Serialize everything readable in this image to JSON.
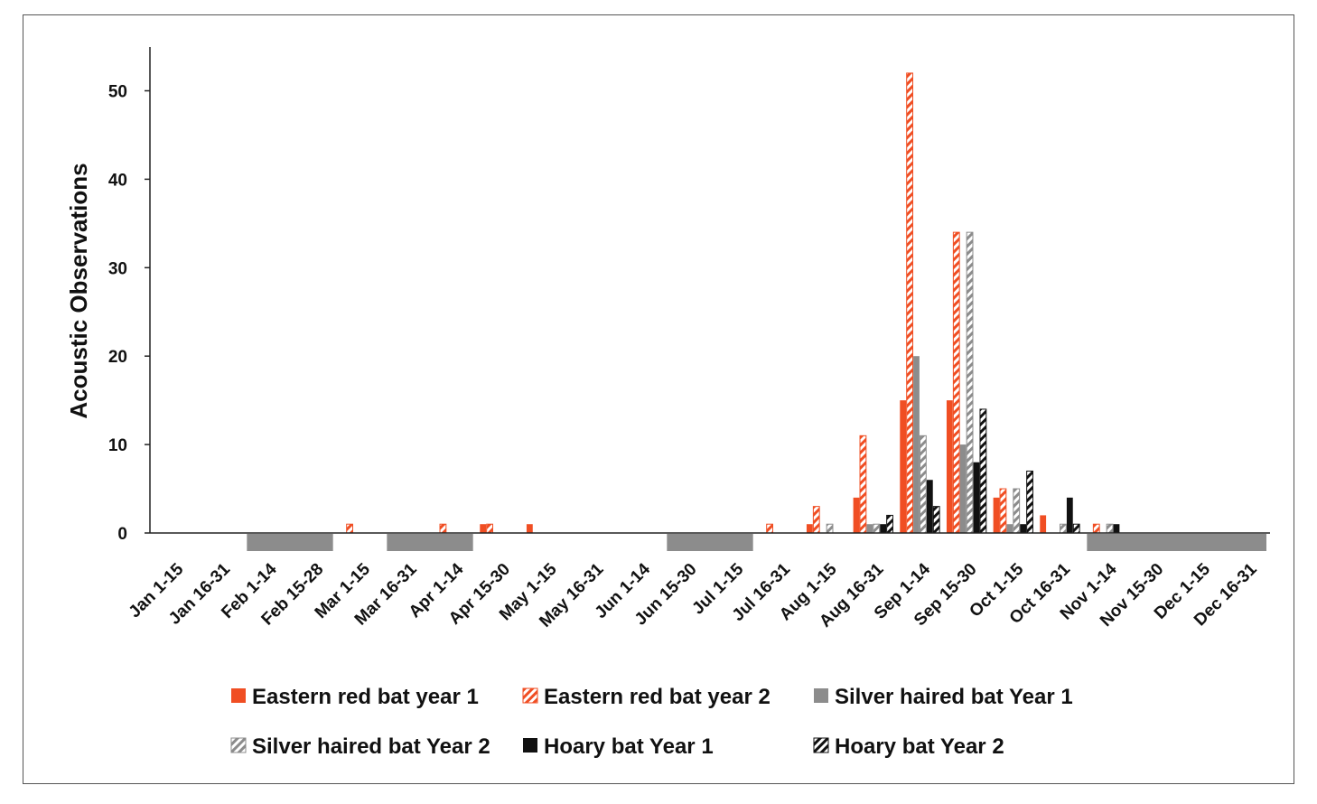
{
  "chart_data": {
    "type": "bar",
    "ylabel": "Acoustic Observations",
    "xlabel": "",
    "ylim": [
      0,
      55
    ],
    "yticks": [
      0,
      10,
      20,
      30,
      40,
      50
    ],
    "grid": false,
    "legend_position": "bottom",
    "categories": [
      "Jan 1-15",
      "Jan 16-31",
      "Feb 1-14",
      "Feb 15-28",
      "Mar 1-15",
      "Mar 16-31",
      "Apr 1-14",
      "Apr 15-30",
      "May 1-15",
      "May 16-31",
      "Jun 1-14",
      "Jun 15-30",
      "Jul 1-15",
      "Jul 16-31",
      "Aug 1-15",
      "Aug 16-31",
      "Sep 1-14",
      "Sep 15-30",
      "Oct 1-15",
      "Oct 16-31",
      "Nov 1-14",
      "Nov 15-30",
      "Dec 1-15",
      "Dec 16-31"
    ],
    "series": [
      {
        "name": "Eastern red bat year 1",
        "color": "#f04e23",
        "pattern": "solid",
        "values": [
          0,
          0,
          0,
          0,
          0,
          0,
          0,
          1,
          1,
          0,
          0,
          0,
          0,
          0,
          1,
          4,
          15,
          15,
          4,
          2,
          0,
          0,
          0,
          0
        ]
      },
      {
        "name": "Eastern red bat year 2",
        "color": "#f04e23",
        "pattern": "hatch",
        "values": [
          0,
          0,
          0,
          0,
          1,
          0,
          1,
          1,
          0,
          0,
          0,
          0,
          0,
          1,
          3,
          11,
          52,
          34,
          5,
          0,
          1,
          0,
          0,
          0
        ]
      },
      {
        "name": "Silver haired bat Year 1",
        "color": "#8c8c8c",
        "pattern": "solid",
        "values": [
          0,
          0,
          0,
          0,
          0,
          0,
          0,
          0,
          0,
          0,
          0,
          0,
          0,
          0,
          0,
          1,
          20,
          10,
          1,
          0,
          0,
          0,
          0,
          0
        ]
      },
      {
        "name": "Silver haired bat Year 2",
        "color": "#8c8c8c",
        "pattern": "hatch",
        "values": [
          0,
          0,
          0,
          0,
          0,
          0,
          0,
          0,
          0,
          0,
          0,
          0,
          0,
          0,
          1,
          1,
          11,
          34,
          5,
          1,
          1,
          0,
          0,
          0
        ]
      },
      {
        "name": "Hoary bat Year 1",
        "color": "#111111",
        "pattern": "solid",
        "values": [
          0,
          0,
          0,
          0,
          0,
          0,
          0,
          0,
          0,
          0,
          0,
          0,
          0,
          0,
          0,
          1,
          6,
          8,
          1,
          4,
          1,
          0,
          0,
          0
        ]
      },
      {
        "name": "Hoary bat Year 2",
        "color": "#111111",
        "pattern": "hatch",
        "values": [
          0,
          0,
          0,
          0,
          0,
          0,
          0,
          0,
          0,
          0,
          0,
          0,
          0,
          0,
          0,
          2,
          3,
          14,
          7,
          1,
          0,
          0,
          0,
          0
        ]
      }
    ],
    "hibernation_periods": [
      {
        "start": 2,
        "end": 3
      },
      {
        "start": 5,
        "end": 6
      },
      {
        "start": 11,
        "end": 12
      },
      {
        "start": 20,
        "end": 23
      }
    ]
  }
}
